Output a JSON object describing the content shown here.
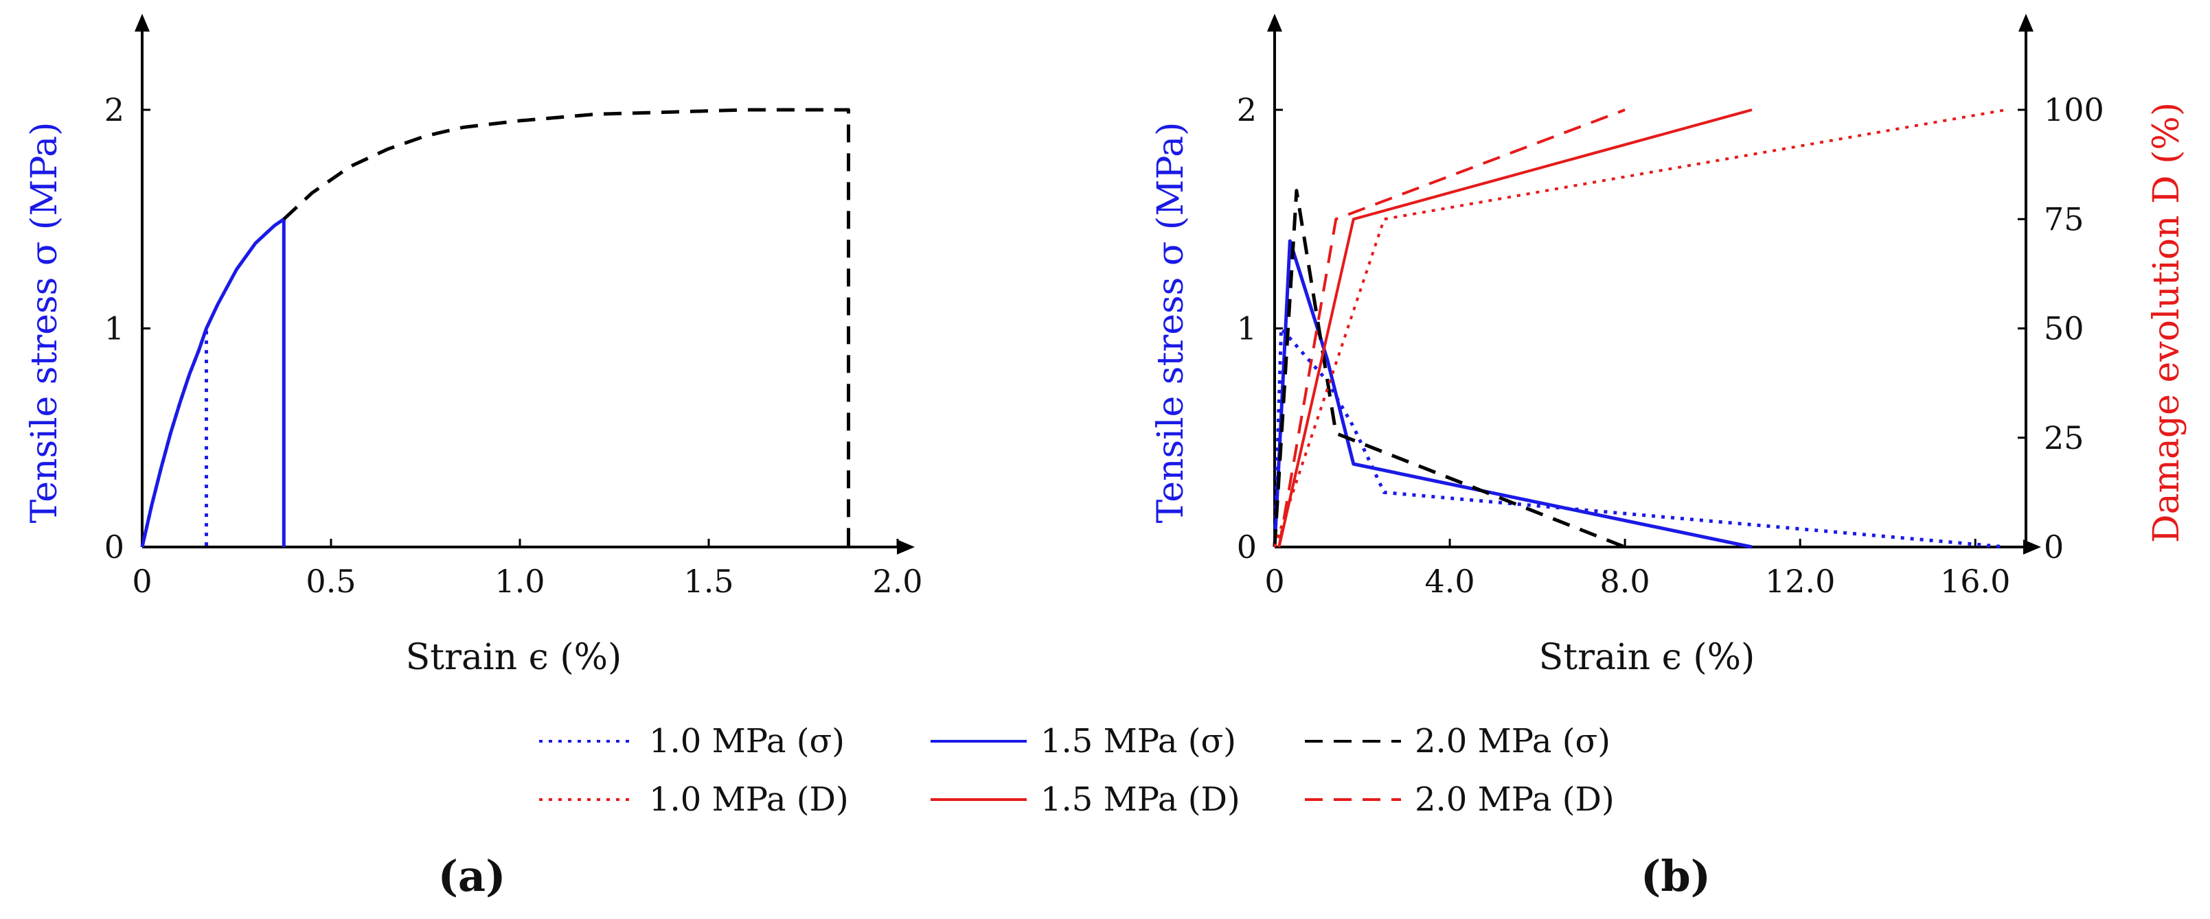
{
  "chart_data": [
    {
      "type": "line",
      "panel_label": "(a)",
      "xlabel": "Strain ϵ (%)",
      "ylabel": "Tensile stress σ (MPa)",
      "xlim": [
        0,
        2.0
      ],
      "ylim": [
        0,
        2.4
      ],
      "xticks": [
        0,
        0.5,
        1.0,
        1.5,
        2.0
      ],
      "xtick_labels": [
        "0",
        "0.5",
        "1.0",
        "1.5",
        "2.0"
      ],
      "yticks": [
        0,
        1,
        2
      ],
      "ytick_labels": [
        "0",
        "1",
        "2"
      ],
      "series": [
        {
          "name": "1.0 MPa (σ)",
          "color": "#1a1ae6",
          "dash": "dotted",
          "points": [
            [
              0,
              0
            ],
            [
              0.025,
              0.19
            ],
            [
              0.05,
              0.36
            ],
            [
              0.075,
              0.52
            ],
            [
              0.1,
              0.66
            ],
            [
              0.125,
              0.79
            ],
            [
              0.15,
              0.9
            ],
            [
              0.17,
              1.0
            ],
            [
              0.17,
              0
            ]
          ]
        },
        {
          "name": "1.5 MPa (σ)",
          "color": "#1a1ae6",
          "dash": "solid",
          "points": [
            [
              0,
              0
            ],
            [
              0.025,
              0.19
            ],
            [
              0.05,
              0.36
            ],
            [
              0.075,
              0.52
            ],
            [
              0.1,
              0.66
            ],
            [
              0.125,
              0.79
            ],
            [
              0.15,
              0.9
            ],
            [
              0.17,
              1.0
            ],
            [
              0.2,
              1.11
            ],
            [
              0.25,
              1.27
            ],
            [
              0.3,
              1.39
            ],
            [
              0.35,
              1.47
            ],
            [
              0.375,
              1.5
            ],
            [
              0.375,
              0
            ]
          ]
        },
        {
          "name": "2.0 MPa (σ)",
          "color": "#000000",
          "dash": "dashed",
          "points": [
            [
              0.375,
              1.5
            ],
            [
              0.45,
              1.62
            ],
            [
              0.55,
              1.74
            ],
            [
              0.65,
              1.82
            ],
            [
              0.75,
              1.88
            ],
            [
              0.85,
              1.92
            ],
            [
              1.0,
              1.95
            ],
            [
              1.2,
              1.98
            ],
            [
              1.4,
              1.99
            ],
            [
              1.6,
              2.0
            ],
            [
              1.85,
              2.0
            ],
            [
              1.87,
              2.0
            ],
            [
              1.87,
              0
            ]
          ]
        }
      ]
    },
    {
      "type": "line",
      "panel_label": "(b)",
      "xlabel": "Strain ϵ (%)",
      "ylabel": "Tensile stress σ (MPa)",
      "ylabel_right": "Damage evolution D (%)",
      "xlim": [
        0,
        17.0
      ],
      "ylim": [
        0,
        2.4
      ],
      "ylim_right": [
        0,
        120
      ],
      "xticks": [
        0,
        4.0,
        8.0,
        12.0,
        16.0
      ],
      "xtick_labels": [
        "0",
        "4.0",
        "8.0",
        "12.0",
        "16.0"
      ],
      "yticks": [
        0,
        1,
        2
      ],
      "ytick_labels": [
        "0",
        "1",
        "2"
      ],
      "yticks_right": [
        0,
        25,
        50,
        75,
        100
      ],
      "ytick_labels_right": [
        "0",
        "25",
        "50",
        "75",
        "100"
      ],
      "series": [
        {
          "name": "1.0 MPa (σ)",
          "axis": "left",
          "color": "#1a1ae6",
          "dash": "dotted",
          "points": [
            [
              0,
              0
            ],
            [
              0.15,
              1.0
            ],
            [
              1.2,
              0.76
            ],
            [
              1.8,
              0.55
            ],
            [
              2.5,
              0.25
            ],
            [
              16.7,
              0
            ]
          ]
        },
        {
          "name": "1.5 MPa (σ)",
          "axis": "left",
          "color": "#1a1ae6",
          "dash": "solid",
          "points": [
            [
              0,
              0
            ],
            [
              0.35,
              1.4
            ],
            [
              1.2,
              0.86
            ],
            [
              1.8,
              0.38
            ],
            [
              10.9,
              0
            ]
          ]
        },
        {
          "name": "2.0 MPa (σ)",
          "axis": "left",
          "color": "#000000",
          "dash": "dashed",
          "points": [
            [
              0,
              0
            ],
            [
              0.5,
              1.63
            ],
            [
              1.4,
              0.52
            ],
            [
              8.0,
              0
            ]
          ]
        },
        {
          "name": "1.0 MPa (D)",
          "axis": "right",
          "color": "#e61a1a",
          "dash": "dotted",
          "points": [
            [
              0,
              0
            ],
            [
              2.5,
              75
            ],
            [
              16.7,
              100
            ]
          ]
        },
        {
          "name": "1.5 MPa (D)",
          "axis": "right",
          "color": "#e61a1a",
          "dash": "solid",
          "points": [
            [
              0.1,
              0
            ],
            [
              1.8,
              75
            ],
            [
              10.9,
              100
            ]
          ]
        },
        {
          "name": "2.0 MPa (D)",
          "axis": "right",
          "color": "#e61a1a",
          "dash": "dashed",
          "points": [
            [
              0.1,
              0
            ],
            [
              1.4,
              75
            ],
            [
              8.0,
              100
            ]
          ]
        }
      ]
    }
  ],
  "legend": {
    "entries": [
      {
        "label": "1.0 MPa (σ)",
        "color": "#1a1ae6",
        "dash": "dotted"
      },
      {
        "label": "1.5 MPa (σ)",
        "color": "#1a1ae6",
        "dash": "solid"
      },
      {
        "label": "2.0 MPa (σ)",
        "color": "#000000",
        "dash": "dashed"
      },
      {
        "label": "1.0 MPa (D)",
        "color": "#e61a1a",
        "dash": "dotted"
      },
      {
        "label": "1.5 MPa (D)",
        "color": "#e61a1a",
        "dash": "solid"
      },
      {
        "label": "2.0 MPa (D)",
        "color": "#e61a1a",
        "dash": "dashed"
      }
    ]
  },
  "colors": {
    "stress_axis_label": "#1a1ae6",
    "damage_axis_label": "#e61a1a"
  }
}
